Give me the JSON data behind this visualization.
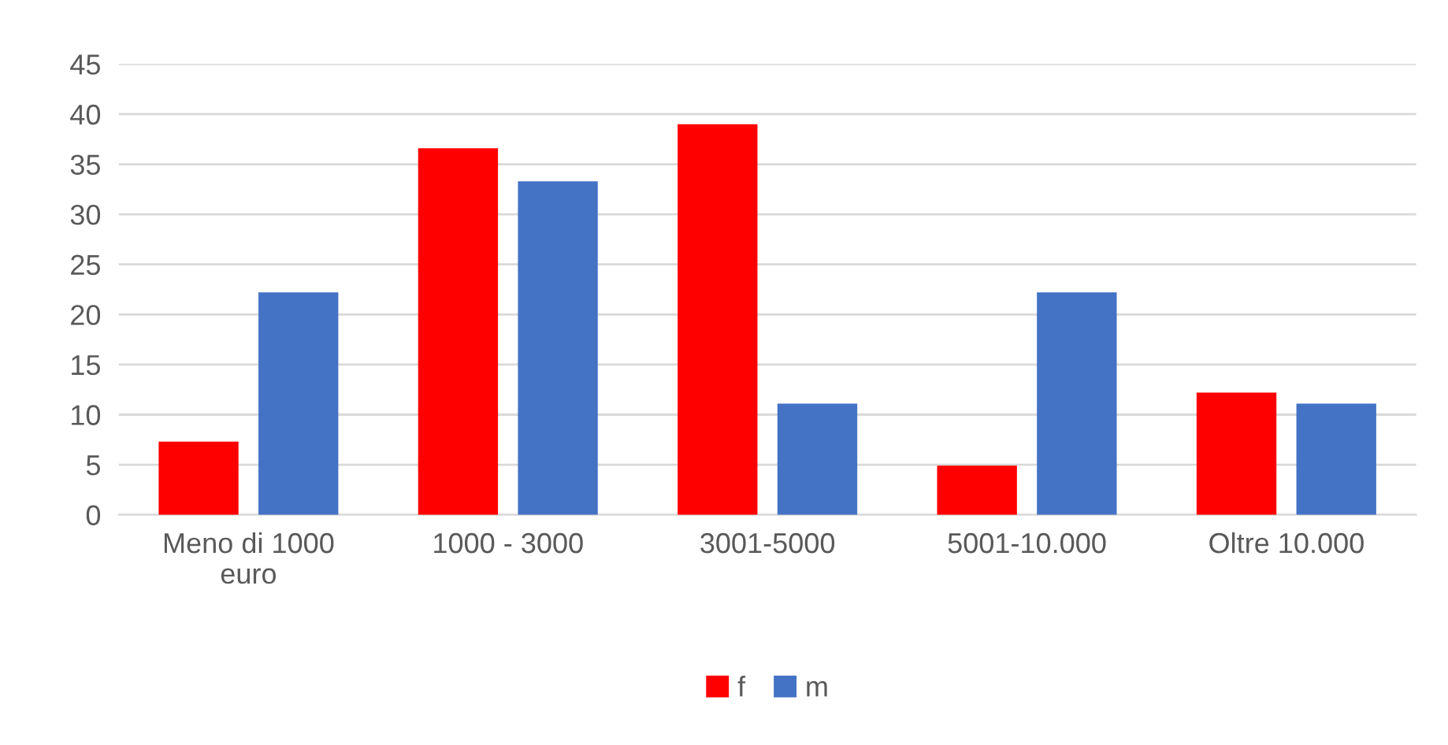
{
  "chart_data": {
    "type": "bar",
    "categories": [
      "Meno di 1000\neuro",
      "1000 - 3000",
      "3001-5000",
      "5001-10.000",
      "Oltre 10.000"
    ],
    "series": [
      {
        "name": "f",
        "color": "#ff0000",
        "values": [
          7.3,
          36.6,
          39.0,
          4.9,
          12.2
        ]
      },
      {
        "name": "m",
        "color": "#4472c4",
        "values": [
          22.2,
          33.3,
          11.1,
          22.2,
          11.1
        ]
      }
    ],
    "ylim": [
      0,
      45
    ],
    "yticks": [
      0,
      5,
      10,
      15,
      20,
      25,
      30,
      35,
      40,
      45
    ],
    "grid": "y",
    "legend": "bottom"
  }
}
